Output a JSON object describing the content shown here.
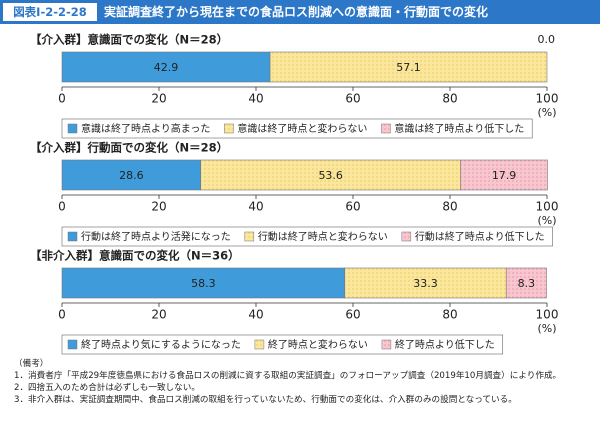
{
  "header": {
    "label": "図表Ⅰ-2-2-28",
    "title": "実証調査終了から現在までの食品ロス削減への意識面・行動面での変化"
  },
  "chart_data": [
    {
      "type": "stacked-bar",
      "title": "【介入群】意識面での変化（N＝28）",
      "xlim": [
        0,
        100
      ],
      "xticks": [
        0,
        20,
        40,
        60,
        80,
        100
      ],
      "xlabel": "(%)",
      "series": [
        {
          "name": "意識は終了時点より高まった",
          "color": "#3f9bd9",
          "values": [
            42.9
          ]
        },
        {
          "name": "意識は終了時点と変わらない",
          "color": "#fbe79c",
          "values": [
            57.1
          ]
        },
        {
          "name": "意識は終了時点より低下した",
          "color": "#f8c6cf",
          "values": [
            0
          ],
          "value_labels": [
            "0.0"
          ]
        }
      ]
    },
    {
      "type": "stacked-bar",
      "title": "【介入群】行動面での変化（N＝28）",
      "xlim": [
        0,
        100
      ],
      "xticks": [
        0,
        20,
        40,
        60,
        80,
        100
      ],
      "xlabel": "(%)",
      "series": [
        {
          "name": "行動は終了時点より活発になった",
          "color": "#3f9bd9",
          "values": [
            28.6
          ]
        },
        {
          "name": "行動は終了時点と変わらない",
          "color": "#fbe79c",
          "values": [
            53.6
          ]
        },
        {
          "name": "行動は終了時点より低下した",
          "color": "#f8c6cf",
          "values": [
            17.9
          ]
        }
      ]
    },
    {
      "type": "stacked-bar",
      "title": "【非介入群】意識面での変化（N＝36）",
      "xlim": [
        0,
        100
      ],
      "xticks": [
        0,
        20,
        40,
        60,
        80,
        100
      ],
      "xlabel": "(%)",
      "series": [
        {
          "name": "終了時点より気にするようになった",
          "color": "#3f9bd9",
          "values": [
            58.3
          ]
        },
        {
          "name": "終了時点と変わらない",
          "color": "#fbe79c",
          "values": [
            33.3
          ]
        },
        {
          "name": "終了時点より低下した",
          "color": "#f8c6cf",
          "values": [
            8.3
          ]
        }
      ]
    }
  ],
  "notes": {
    "label": "（備考）",
    "items": [
      "1．消費者庁「平成29年度徳島県における食品ロスの削減に資する取組の実証調査」のフォローアップ調査（2019年10月調査）により作成。",
      "2．四捨五入のため合計は必ずしも一致しない。",
      "3．非介入群は、実証調査期間中、食品ロス削減の取組を行っていないため、行動面での変化は、介入群のみの設問となっている。"
    ]
  }
}
